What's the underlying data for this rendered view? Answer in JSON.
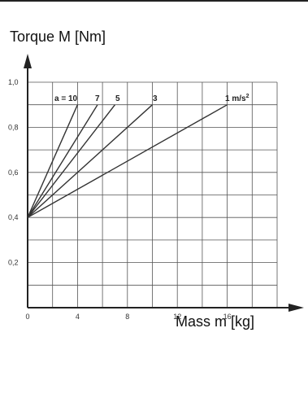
{
  "chart_data": {
    "type": "line",
    "xlabel": "Mass m [kg]",
    "ylabel": "Torque M [Nm]",
    "xlim": [
      0,
      20
    ],
    "ylim": [
      0,
      1.0
    ],
    "x_ticks": [
      "0",
      "4",
      "8",
      "12",
      "16"
    ],
    "y_ticks": [
      "1,0",
      "0,8",
      "0,6",
      "0,4",
      "0,2"
    ],
    "grid": true,
    "series": [
      {
        "name": "a = 10",
        "points": [
          [
            0,
            0.4
          ],
          [
            4,
            0.9
          ]
        ]
      },
      {
        "name": "7",
        "points": [
          [
            0,
            0.4
          ],
          [
            5.6,
            0.9
          ]
        ]
      },
      {
        "name": "5",
        "points": [
          [
            0,
            0.4
          ],
          [
            7,
            0.9
          ]
        ]
      },
      {
        "name": "3",
        "points": [
          [
            0,
            0.4
          ],
          [
            10,
            0.9
          ]
        ]
      },
      {
        "name": "1 m/s²",
        "points": [
          [
            0,
            0.4
          ],
          [
            16,
            0.9
          ]
        ]
      }
    ],
    "series_labels": [
      "a = 10",
      "7",
      "5",
      "3",
      "1 m/s"
    ],
    "unit_superscript": "2",
    "colors": {
      "line": "#333333",
      "axis": "#222222",
      "grid": "#555555"
    }
  }
}
